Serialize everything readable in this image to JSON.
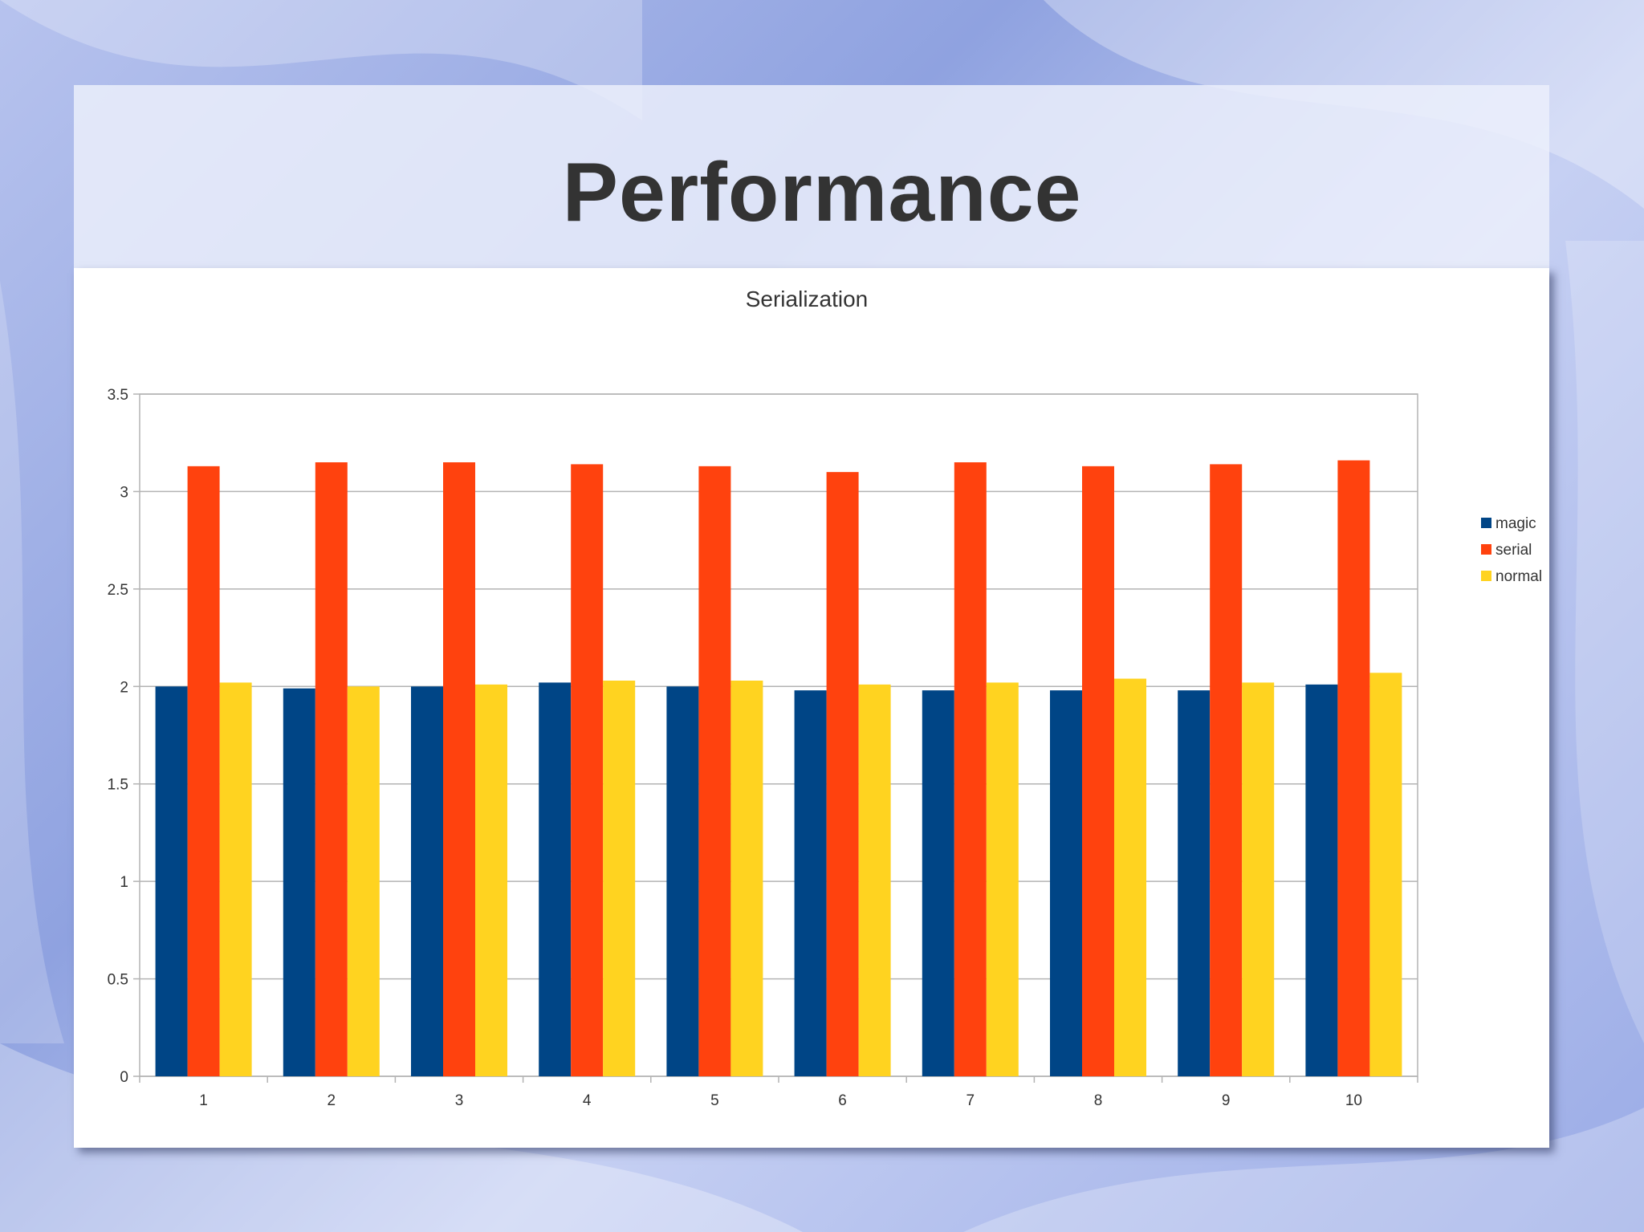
{
  "slide": {
    "title": "Performance"
  },
  "colors": {
    "magic": "#004586",
    "serial": "#ff420e",
    "normal": "#ffd320"
  },
  "chart_data": {
    "type": "bar",
    "title": "Serialization",
    "xlabel": "",
    "ylabel": "",
    "categories": [
      "1",
      "2",
      "3",
      "4",
      "5",
      "6",
      "7",
      "8",
      "9",
      "10"
    ],
    "series": [
      {
        "name": "magic",
        "values": [
          2.0,
          1.99,
          2.0,
          2.02,
          2.0,
          1.98,
          1.98,
          1.98,
          1.98,
          2.01
        ]
      },
      {
        "name": "serial",
        "values": [
          3.13,
          3.15,
          3.15,
          3.14,
          3.13,
          3.1,
          3.15,
          3.13,
          3.14,
          3.16
        ]
      },
      {
        "name": "normal",
        "values": [
          2.02,
          2.0,
          2.01,
          2.03,
          2.03,
          2.01,
          2.02,
          2.04,
          2.02,
          2.07
        ]
      }
    ],
    "ylim": [
      0,
      3.5
    ],
    "yticks": [
      "0",
      "0.5",
      "1",
      "1.5",
      "2",
      "2.5",
      "3",
      "3.5"
    ],
    "grid": true,
    "legend_position": "right"
  }
}
